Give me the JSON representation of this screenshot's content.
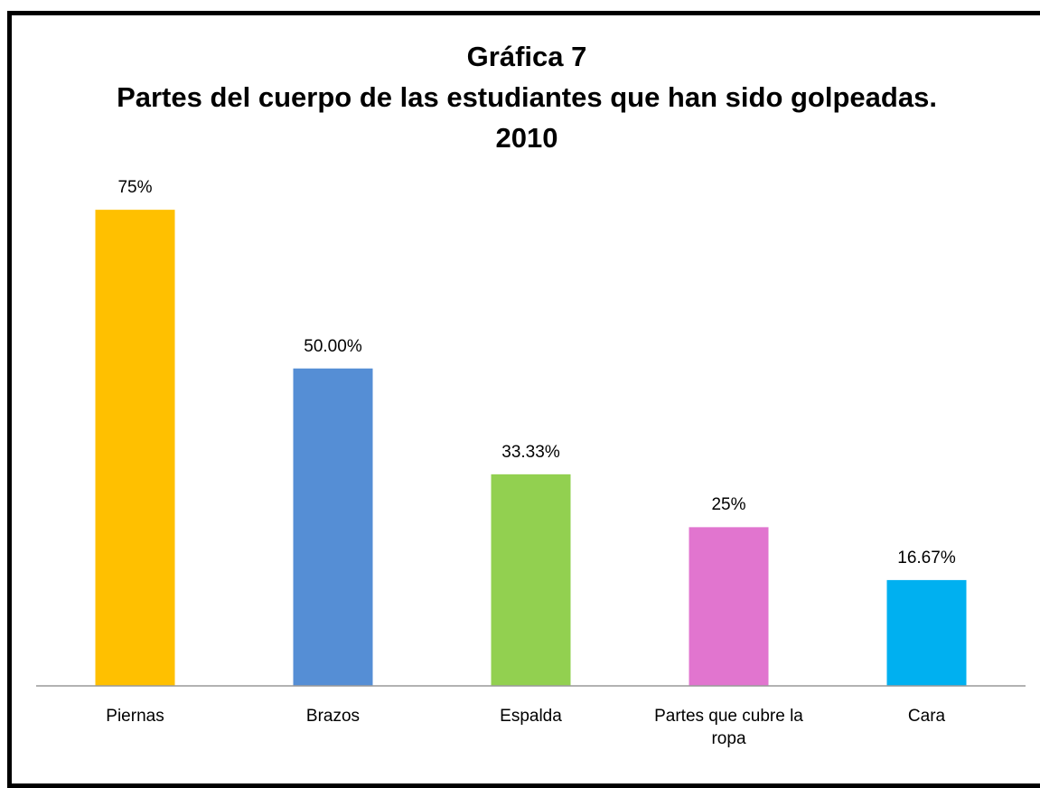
{
  "chart_data": {
    "type": "bar",
    "title": "Gráfica 7",
    "subtitle": "Partes del cuerpo de las estudiantes que han sido golpeadas. 2010",
    "categories": [
      "Piernas",
      "Brazos",
      "Espalda",
      "Partes que cubre la ropa",
      "Cara"
    ],
    "values": [
      75,
      50,
      33.33,
      25,
      16.67
    ],
    "value_labels": [
      "75%",
      "50.00%",
      "33.33%",
      "25%",
      "16.67%"
    ],
    "colors": [
      "#ffc000",
      "#558ed5",
      "#92d050",
      "#e175cf",
      "#00b0f0"
    ],
    "ylim": [
      0,
      80
    ]
  }
}
